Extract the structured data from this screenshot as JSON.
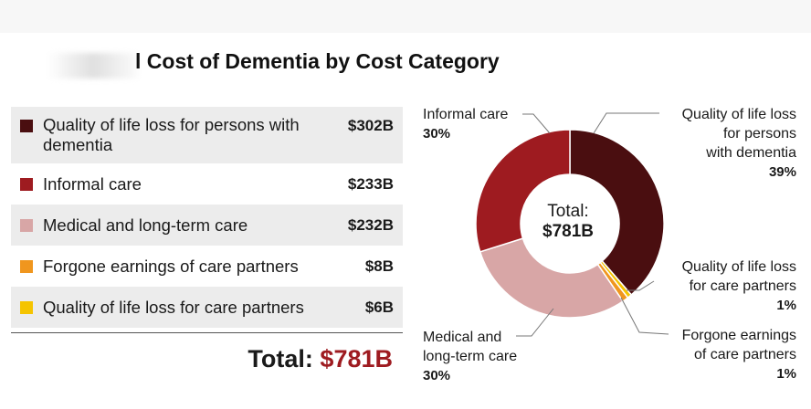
{
  "title": "l Cost of Dementia by Cost Category",
  "table": {
    "rows": [
      {
        "label": "Quality of life loss for persons with dementia",
        "value": "$302B",
        "color": "#4a0e10"
      },
      {
        "label": "Informal care",
        "value": "$233B",
        "color": "#9e1b20"
      },
      {
        "label": "Medical and long-term care",
        "value": "$232B",
        "color": "#d8a6a6"
      },
      {
        "label": "Forgone earnings of care partners",
        "value": "$8B",
        "color": "#f0961e"
      },
      {
        "label": "Quality of life loss for care partners",
        "value": "$6B",
        "color": "#f5c400"
      }
    ]
  },
  "total": {
    "label": "Total:",
    "value": "$781B"
  },
  "chart_data": {
    "type": "pie",
    "variant": "donut",
    "center_label": [
      "Total:",
      "$781B"
    ],
    "categories": [
      "Quality of life loss for persons with dementia",
      "Quality of life loss for care partners",
      "Forgone earnings of care partners",
      "Medical and long-term care",
      "Informal care"
    ],
    "values": [
      302,
      6,
      8,
      232,
      233
    ],
    "colors": [
      "#4a0e10",
      "#f5c400",
      "#f0961e",
      "#d8a6a6",
      "#9e1b20"
    ],
    "units": "$B",
    "annotations": [
      {
        "lines": [
          "Informal care"
        ],
        "pct": "30%"
      },
      {
        "lines": [
          "Quality of life loss",
          "for persons",
          "with dementia"
        ],
        "pct": "39%"
      },
      {
        "lines": [
          "Quality of life loss",
          "for care partners"
        ],
        "pct": "1%"
      },
      {
        "lines": [
          "Medical and",
          "long-term care"
        ],
        "pct": "30%"
      },
      {
        "lines": [
          "Forgone earnings",
          "of care partners"
        ],
        "pct": "1%"
      }
    ]
  }
}
